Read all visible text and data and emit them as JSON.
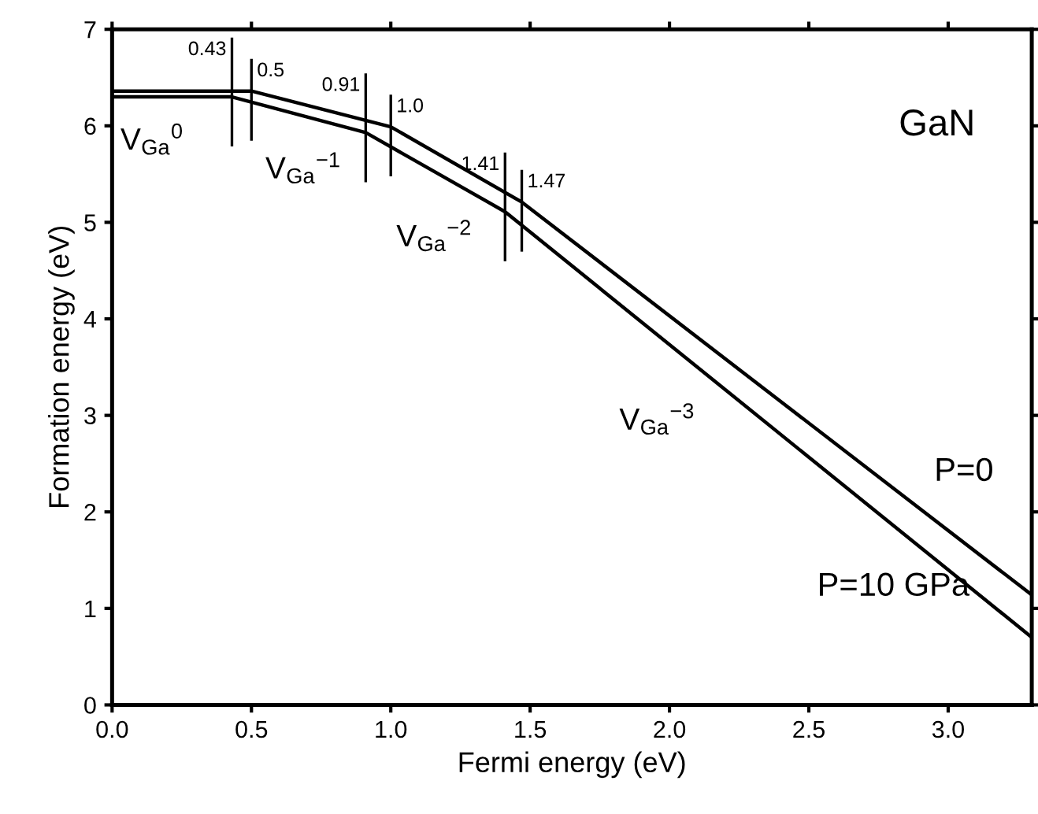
{
  "chart_data": {
    "type": "line",
    "xlabel": "Fermi energy (eV)",
    "ylabel": "Formation energy (eV)",
    "series": [
      {
        "name": "P=0",
        "color": "#000000",
        "x": [
          0,
          0.5,
          1.0,
          1.47,
          3.3
        ],
        "values": [
          6.36,
          6.36,
          5.99,
          5.21,
          1.14
        ]
      },
      {
        "name": "P=10 GPa",
        "color": "#000000",
        "x": [
          0,
          0.43,
          0.91,
          1.41,
          3.3
        ],
        "values": [
          6.3,
          6.3,
          5.93,
          5.11,
          0.7
        ]
      }
    ],
    "xlim": [
      0,
      3.3
    ],
    "xticks": [
      {
        "value": 0,
        "label": "0.0"
      },
      0.5,
      {
        "value": 1,
        "label": "1.0"
      },
      1.5,
      {
        "value": 2,
        "label": "2.0"
      },
      2.5,
      {
        "value": 3,
        "label": "3.0"
      }
    ],
    "ylim": [
      0,
      7
    ],
    "yticks": [
      0,
      1,
      2,
      3,
      4,
      5,
      6,
      7
    ],
    "legend": false,
    "line_style": "solid",
    "marker": "none",
    "annotations": [
      {
        "text": "0.43",
        "x": 0.43,
        "y": 6.3
      },
      {
        "text": "0.5",
        "x": 0.5,
        "y": 6.36
      },
      {
        "text": "0.91",
        "x": 0.91,
        "y": 5.93
      },
      {
        "text": "1.0",
        "x": 1.0,
        "y": 5.99
      },
      {
        "text": "1.41",
        "x": 1.41,
        "y": 5.11
      },
      {
        "text": "1.47",
        "x": 1.47,
        "y": 5.21
      },
      "V$_{Ga}$$^{0}$",
      "V$_{Ga}$$^{−1}$",
      "V$_{Ga}$$^{−2}$",
      "V$_{Ga}$$^{−3}$",
      "GaN"
    ]
  }
}
